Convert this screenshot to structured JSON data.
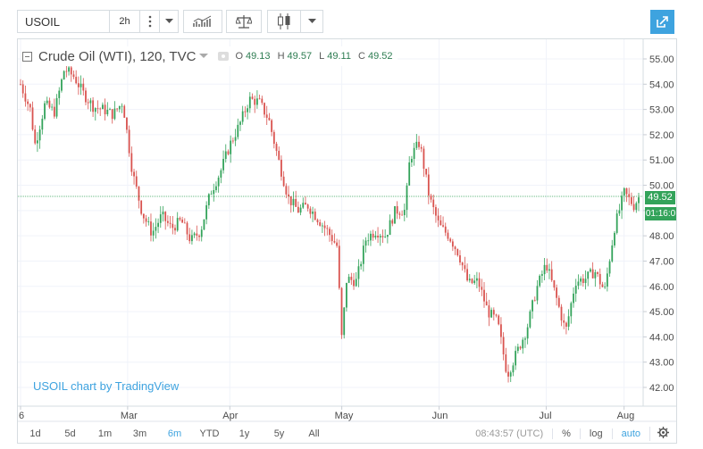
{
  "toolbar": {
    "symbol": "USOIL",
    "interval": "2h",
    "more_icon": "vertical-dots-icon",
    "dropdown_icon": "chevron-down-icon",
    "indicators_icon": "indicators-icon",
    "compare_icon": "scales-icon",
    "chart_type_icon": "candlestick-icon",
    "popout_icon": "popout-icon"
  },
  "legend": {
    "title": "Crude Oil (WTI), 120, TVC",
    "open_label": "O",
    "open": "49.13",
    "high_label": "H",
    "high": "49.57",
    "low_label": "L",
    "low": "49.11",
    "close_label": "C",
    "close": "49.52"
  },
  "price_tag": "49.52",
  "countdown_tag": "01:16:0",
  "watermark": "USOIL chart by TradingView",
  "bottom": {
    "ranges": [
      "1d",
      "5d",
      "1m",
      "3m",
      "6m",
      "YTD",
      "1y",
      "5y",
      "All"
    ],
    "active_range": "6m",
    "time": "08:43:57 (UTC)",
    "percent": "%",
    "log": "log",
    "auto": "auto",
    "settings_icon": "gear-icon"
  },
  "colors": {
    "up": "#33a35a",
    "down": "#d9534f",
    "accent": "#3ea3df",
    "line": "#33a35a"
  },
  "chart_data": {
    "type": "candlestick",
    "title": "Crude Oil (WTI), 120, TVC",
    "y_ticks": [
      "55.00",
      "54.00",
      "53.00",
      "52.00",
      "51.00",
      "50.00",
      "49.00",
      "48.00",
      "47.00",
      "46.00",
      "45.00",
      "44.00",
      "43.00",
      "42.00"
    ],
    "ylim": [
      41.5,
      55.5
    ],
    "x_labels": [
      "6",
      "Mar",
      "Apr",
      "May",
      "Jun",
      "Jul",
      "Aug"
    ],
    "x_label_positions": [
      0,
      22,
      43,
      66,
      86,
      108,
      124
    ],
    "last_price": 49.52,
    "close_path_samples": [
      [
        0,
        54.0
      ],
      [
        2,
        53.0
      ],
      [
        3,
        51.6
      ],
      [
        5,
        53.2
      ],
      [
        7,
        52.9
      ],
      [
        9,
        54.6
      ],
      [
        11,
        54.3
      ],
      [
        13,
        53.6
      ],
      [
        15,
        53.1
      ],
      [
        17,
        53.0
      ],
      [
        19,
        52.8
      ],
      [
        21,
        53.3
      ],
      [
        23,
        50.5
      ],
      [
        25,
        48.9
      ],
      [
        27,
        48.1
      ],
      [
        29,
        48.8
      ],
      [
        31,
        48.3
      ],
      [
        33,
        48.6
      ],
      [
        35,
        47.8
      ],
      [
        37,
        48.2
      ],
      [
        39,
        49.7
      ],
      [
        41,
        50.5
      ],
      [
        43,
        51.6
      ],
      [
        45,
        52.4
      ],
      [
        47,
        53.4
      ],
      [
        49,
        53.3
      ],
      [
        51,
        52.6
      ],
      [
        53,
        51.0
      ],
      [
        55,
        49.5
      ],
      [
        57,
        49.0
      ],
      [
        59,
        49.2
      ],
      [
        61,
        48.7
      ],
      [
        63,
        48.2
      ],
      [
        65,
        47.6
      ],
      [
        66,
        43.9
      ],
      [
        67,
        46.3
      ],
      [
        69,
        46.2
      ],
      [
        71,
        47.9
      ],
      [
        73,
        48.2
      ],
      [
        75,
        48.0
      ],
      [
        77,
        49.0
      ],
      [
        79,
        49.0
      ],
      [
        80,
        51.1
      ],
      [
        82,
        51.7
      ],
      [
        84,
        49.5
      ],
      [
        86,
        48.4
      ],
      [
        88,
        48.0
      ],
      [
        90,
        47.3
      ],
      [
        92,
        46.1
      ],
      [
        94,
        46.2
      ],
      [
        96,
        45.0
      ],
      [
        98,
        44.6
      ],
      [
        100,
        42.5
      ],
      [
        102,
        43.4
      ],
      [
        104,
        44.3
      ],
      [
        106,
        45.9
      ],
      [
        108,
        46.9
      ],
      [
        110,
        45.6
      ],
      [
        112,
        44.2
      ],
      [
        114,
        46.2
      ],
      [
        116,
        46.3
      ],
      [
        118,
        46.6
      ],
      [
        120,
        45.8
      ],
      [
        122,
        48.3
      ],
      [
        124,
        49.7
      ],
      [
        126,
        49.2
      ],
      [
        127,
        49.52
      ]
    ],
    "grid": true
  }
}
